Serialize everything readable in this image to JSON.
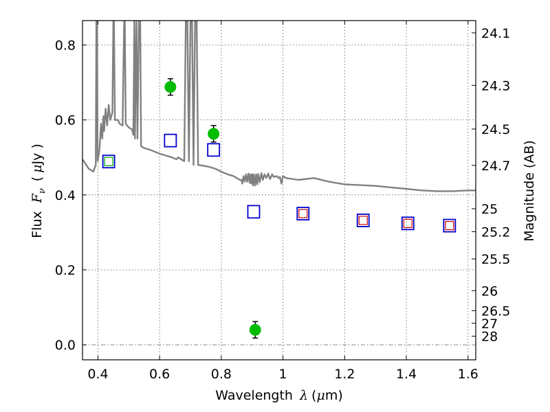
{
  "chart_data": {
    "type": "scatter",
    "title": "",
    "xlabel_prefix": "Wavelength",
    "xlabel_symbol": "λ",
    "xlabel_open": "(",
    "xlabel_unit_symbol": "μ",
    "xlabel_unit_rest": "m)",
    "ylabel_prefix": "Flux",
    "ylabel_symbol": "F",
    "ylabel_sub": "ν",
    "ylabel_open": "(",
    "ylabel_unit_symbol": "μ",
    "ylabel_unit_rest": "Jy )",
    "y2label": "Magnitude (AB)",
    "xlim": [
      0.35,
      1.625
    ],
    "ylim": [
      -0.04,
      0.865
    ],
    "grid": true,
    "x_ticks": [
      {
        "value": 0.4,
        "label": "0.4"
      },
      {
        "value": 0.6,
        "label": "0.6"
      },
      {
        "value": 0.8,
        "label": "0.8"
      },
      {
        "value": 1.0,
        "label": "1"
      },
      {
        "value": 1.2,
        "label": "1.2"
      },
      {
        "value": 1.4,
        "label": "1.4"
      },
      {
        "value": 1.6,
        "label": "1.6"
      }
    ],
    "y_ticks": [
      {
        "value": 0.0,
        "label": "0.0"
      },
      {
        "value": 0.2,
        "label": "0.2"
      },
      {
        "value": 0.4,
        "label": "0.4"
      },
      {
        "value": 0.6,
        "label": "0.6"
      },
      {
        "value": 0.8,
        "label": "0.8"
      }
    ],
    "magnitude_ticks": [
      {
        "value": 0.8323,
        "label": "24.1"
      },
      {
        "value": 0.6922,
        "label": "24.3"
      },
      {
        "value": 0.5757,
        "label": "24.5"
      },
      {
        "value": 0.4788,
        "label": "24.7"
      },
      {
        "value": 0.3631,
        "label": "25"
      },
      {
        "value": 0.302,
        "label": "25.2"
      },
      {
        "value": 0.2291,
        "label": "25.5"
      },
      {
        "value": 0.1445,
        "label": "26"
      },
      {
        "value": 0.0912,
        "label": "26.5"
      },
      {
        "value": 0.0575,
        "label": "27"
      },
      {
        "value": 0.0229,
        "label": "28"
      }
    ],
    "series": [
      {
        "kind": "line",
        "color": "#808080",
        "points": [
          [
            0.35,
            0.495
          ],
          [
            0.37,
            0.47
          ],
          [
            0.385,
            0.462
          ],
          [
            0.393,
            0.48
          ],
          [
            0.395,
            0.87
          ],
          [
            0.397,
            0.87
          ],
          [
            0.399,
            0.49
          ],
          [
            0.405,
            0.52
          ],
          [
            0.41,
            0.59
          ],
          [
            0.414,
            0.55
          ],
          [
            0.418,
            0.61
          ],
          [
            0.42,
            0.57
          ],
          [
            0.425,
            0.63
          ],
          [
            0.43,
            0.585
          ],
          [
            0.435,
            0.64
          ],
          [
            0.44,
            0.6
          ],
          [
            0.447,
            0.62
          ],
          [
            0.45,
            0.87
          ],
          [
            0.452,
            0.87
          ],
          [
            0.455,
            0.6
          ],
          [
            0.465,
            0.6
          ],
          [
            0.47,
            0.59
          ],
          [
            0.48,
            0.585
          ],
          [
            0.485,
            0.87
          ],
          [
            0.487,
            0.87
          ],
          [
            0.49,
            0.59
          ],
          [
            0.5,
            0.58
          ],
          [
            0.51,
            0.575
          ],
          [
            0.515,
            0.56
          ],
          [
            0.518,
            0.87
          ],
          [
            0.52,
            0.55
          ],
          [
            0.525,
            0.87
          ],
          [
            0.528,
            0.55
          ],
          [
            0.533,
            0.87
          ],
          [
            0.537,
            0.87
          ],
          [
            0.54,
            0.53
          ],
          [
            0.55,
            0.525
          ],
          [
            0.57,
            0.52
          ],
          [
            0.6,
            0.51
          ],
          [
            0.62,
            0.505
          ],
          [
            0.64,
            0.5
          ],
          [
            0.655,
            0.495
          ],
          [
            0.66,
            0.5
          ],
          [
            0.68,
            0.49
          ],
          [
            0.685,
            0.87
          ],
          [
            0.69,
            0.87
          ],
          [
            0.695,
            0.49
          ],
          [
            0.7,
            0.87
          ],
          [
            0.705,
            0.87
          ],
          [
            0.71,
            0.48
          ],
          [
            0.715,
            0.87
          ],
          [
            0.72,
            0.87
          ],
          [
            0.725,
            0.48
          ],
          [
            0.74,
            0.478
          ],
          [
            0.76,
            0.475
          ],
          [
            0.78,
            0.47
          ],
          [
            0.8,
            0.462
          ],
          [
            0.82,
            0.455
          ],
          [
            0.84,
            0.45
          ],
          [
            0.85,
            0.445
          ],
          [
            0.86,
            0.44
          ],
          [
            0.865,
            0.44
          ],
          [
            0.868,
            0.43
          ],
          [
            0.872,
            0.45
          ],
          [
            0.876,
            0.435
          ],
          [
            0.88,
            0.455
          ],
          [
            0.884,
            0.435
          ],
          [
            0.888,
            0.457
          ],
          [
            0.892,
            0.432
          ],
          [
            0.895,
            0.455
          ],
          [
            0.898,
            0.43
          ],
          [
            0.9,
            0.455
          ],
          [
            0.903,
            0.425
          ],
          [
            0.906,
            0.455
          ],
          [
            0.91,
            0.425
          ],
          [
            0.913,
            0.455
          ],
          [
            0.917,
            0.428
          ],
          [
            0.92,
            0.456
          ],
          [
            0.925,
            0.434
          ],
          [
            0.93,
            0.458
          ],
          [
            0.935,
            0.44
          ],
          [
            0.94,
            0.455
          ],
          [
            0.946,
            0.445
          ],
          [
            0.952,
            0.457
          ],
          [
            0.958,
            0.442
          ],
          [
            0.965,
            0.455
          ],
          [
            0.97,
            0.448
          ],
          [
            0.98,
            0.45
          ],
          [
            0.985,
            0.445
          ],
          [
            0.99,
            0.448
          ],
          [
            0.995,
            0.43
          ],
          [
            1.0,
            0.45
          ],
          [
            1.01,
            0.445
          ],
          [
            1.05,
            0.44
          ],
          [
            1.1,
            0.445
          ],
          [
            1.15,
            0.435
          ],
          [
            1.2,
            0.428
          ],
          [
            1.25,
            0.426
          ],
          [
            1.3,
            0.424
          ],
          [
            1.35,
            0.42
          ],
          [
            1.4,
            0.416
          ],
          [
            1.45,
            0.412
          ],
          [
            1.5,
            0.41
          ],
          [
            1.55,
            0.41
          ],
          [
            1.6,
            0.412
          ],
          [
            1.625,
            0.412
          ]
        ]
      },
      {
        "kind": "filled-circles-errorbars",
        "color": "#00bb00",
        "points": [
          {
            "x": 0.635,
            "y": 0.688,
            "err": 0.022
          },
          {
            "x": 0.775,
            "y": 0.563,
            "err": 0.022
          },
          {
            "x": 0.91,
            "y": 0.04,
            "err": 0.022
          }
        ]
      },
      {
        "kind": "open-squares",
        "color": "#0000cc",
        "points": [
          {
            "x": 0.435,
            "y": 0.489
          },
          {
            "x": 0.635,
            "y": 0.545
          },
          {
            "x": 0.775,
            "y": 0.52
          },
          {
            "x": 0.905,
            "y": 0.355
          },
          {
            "x": 1.065,
            "y": 0.35
          },
          {
            "x": 1.26,
            "y": 0.332
          },
          {
            "x": 1.405,
            "y": 0.324
          },
          {
            "x": 1.54,
            "y": 0.318
          }
        ]
      },
      {
        "kind": "open-squares-small",
        "color": "#cc0000",
        "points": [
          {
            "x": 1.065,
            "y": 0.35
          },
          {
            "x": 1.26,
            "y": 0.332
          },
          {
            "x": 1.405,
            "y": 0.324
          },
          {
            "x": 1.54,
            "y": 0.318
          }
        ]
      },
      {
        "kind": "open-squares-small",
        "color": "#00aa00",
        "points": [
          {
            "x": 0.435,
            "y": 0.489
          }
        ]
      }
    ]
  }
}
